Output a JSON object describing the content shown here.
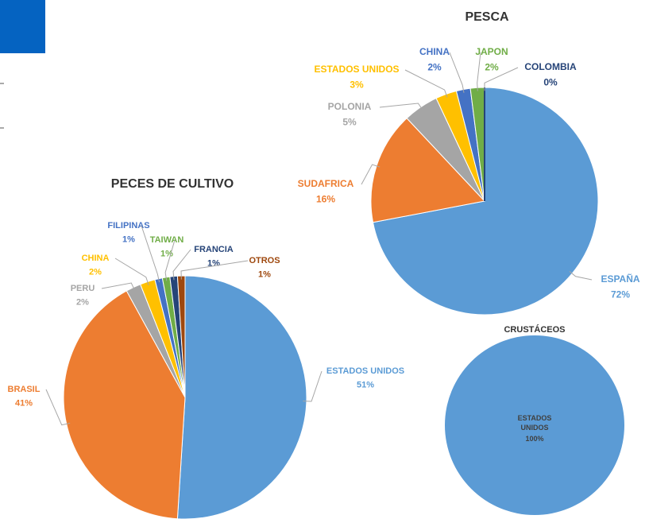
{
  "chart_data": [
    {
      "type": "pie",
      "title": "PESCA",
      "categories": [
        "ESPAÑA",
        "SUDAFRICA",
        "POLONIA",
        "ESTADOS UNIDOS",
        "CHINA",
        "JAPON",
        "COLOMBIA"
      ],
      "values": [
        72,
        16,
        5,
        3,
        2,
        2,
        0
      ],
      "value_labels": [
        "72%",
        "16%",
        "5%",
        "3%",
        "2%",
        "2%",
        "0%"
      ],
      "colors": [
        "#5b9bd5",
        "#ed7d31",
        "#a5a5a5",
        "#ffc000",
        "#4472c4",
        "#70ad47",
        "#264478"
      ]
    },
    {
      "type": "pie",
      "title": "PECES DE CULTIVO",
      "categories": [
        "ESTADOS UNIDOS",
        "BRASIL",
        "PERU",
        "CHINA",
        "FILIPINAS",
        "TAIWAN",
        "FRANCIA",
        "OTROS"
      ],
      "values": [
        51,
        41,
        2,
        2,
        1,
        1,
        1,
        1
      ],
      "value_labels": [
        "51%",
        "41%",
        "2%",
        "2%",
        "1%",
        "1%",
        "1%",
        "1%"
      ],
      "colors": [
        "#5b9bd5",
        "#ed7d31",
        "#a5a5a5",
        "#ffc000",
        "#4472c4",
        "#70ad47",
        "#264478",
        "#9e480e"
      ]
    },
    {
      "type": "pie",
      "title": "CRUSTÁCEOS",
      "categories": [
        "ESTADOS UNIDOS"
      ],
      "values": [
        100
      ],
      "value_labels": [
        "100%"
      ],
      "colors": [
        "#5b9bd5"
      ]
    }
  ]
}
